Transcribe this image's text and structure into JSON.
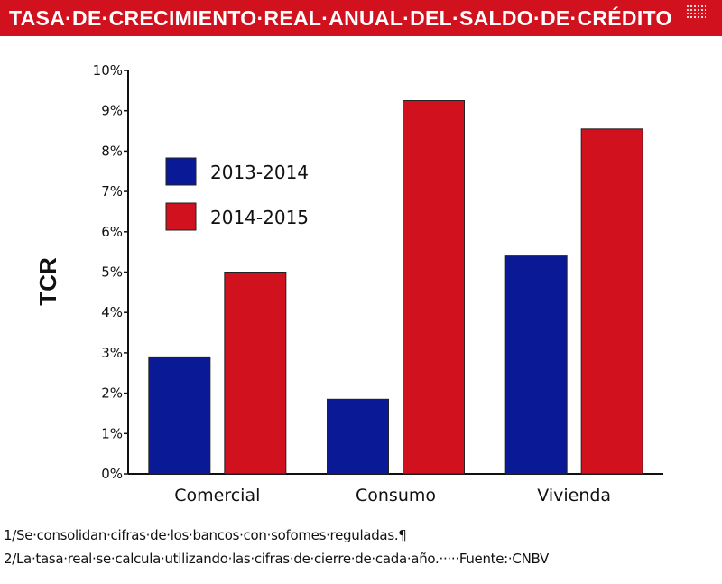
{
  "header": {
    "title": "TASA·DE·CRECIMIENTO·REAL·ANUAL·DEL·SALDO·DE·CRÉDITO"
  },
  "chart_data": {
    "type": "bar",
    "title": "TASA·DE·CRECIMIENTO·REAL·ANUAL·DEL·SALDO·DE·CRÉDITO",
    "xlabel": "",
    "ylabel": "TCR",
    "categories": [
      "Comercial",
      "Consumo",
      "Vivienda"
    ],
    "series": [
      {
        "name": "2013-2014",
        "color": "#0a1a96",
        "values": [
          2.9,
          1.85,
          5.4
        ]
      },
      {
        "name": "2014-2015",
        "color": "#d1111e",
        "values": [
          5.0,
          9.25,
          8.55
        ]
      }
    ],
    "ylim": [
      0,
      10
    ],
    "yticks": [
      "0%",
      "1%",
      "2%",
      "3%",
      "4%",
      "5%",
      "6%",
      "7%",
      "8%",
      "9%",
      "10%"
    ],
    "grid": false,
    "legend": "upper-left"
  },
  "footnotes": {
    "note1": "1/Se·consolidan·cifras·de·los·bancos·con·sofomes·reguladas.¶",
    "note2": "2/La·tasa·real·se·calcula·utilizando·las·cifras·de·cierre·de·cada·año.·····Fuente:·CNBV"
  }
}
